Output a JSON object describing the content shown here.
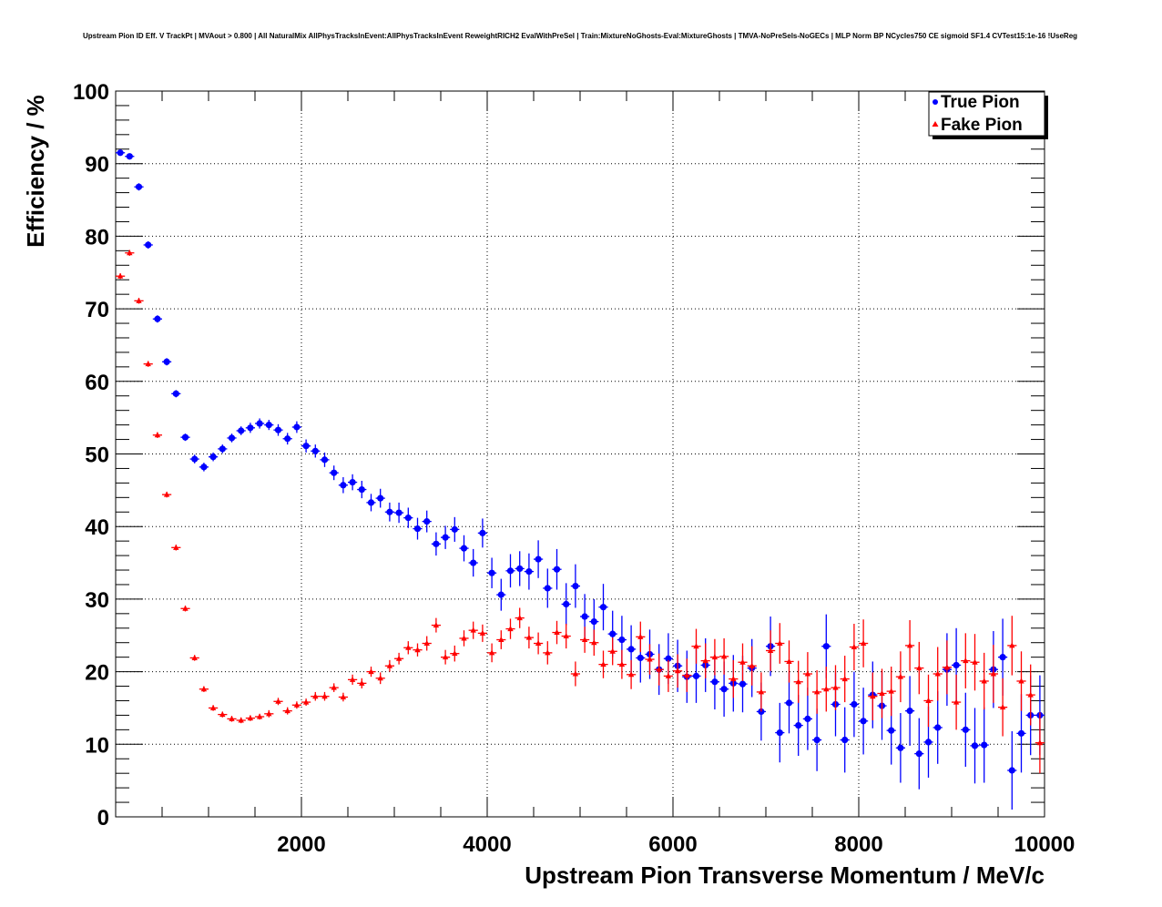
{
  "chart_data": {
    "type": "scatter",
    "title": "Upstream Pion ID Eff. V TrackPt | MVAout > 0.800 | All NaturalMix AllPhysTracksInEvent:AllPhysTracksInEvent ReweightRICH2 EvalWithPreSel | Train:MixtureNoGhosts-Eval:MixtureGhosts | TMVA-NoPreSels-NoGECs | MLP Norm BP NCycles750 CE sigmoid SF1.4 CVTest15:1e-16 !UseReg",
    "xlabel": "Upstream Pion Transverse Momentum / MeV/c",
    "ylabel": "Efficiency / %",
    "xlim": [
      0,
      10000
    ],
    "ylim": [
      0,
      100
    ],
    "x_ticks": [
      2000,
      4000,
      6000,
      8000,
      10000
    ],
    "y_ticks": [
      0,
      10,
      20,
      30,
      40,
      50,
      60,
      70,
      80,
      90,
      100
    ],
    "grid": true,
    "legend_position": "top-right",
    "series": [
      {
        "name": "True Pion",
        "color": "#0000ff",
        "marker": "circle",
        "x": [
          50,
          150,
          250,
          350,
          450,
          550,
          650,
          750,
          850,
          950,
          1050,
          1150,
          1250,
          1350,
          1450,
          1550,
          1650,
          1750,
          1850,
          1950,
          2050,
          2150,
          2250,
          2350,
          2450,
          2550,
          2650,
          2750,
          2850,
          2950,
          3050,
          3150,
          3250,
          3350,
          3450,
          3550,
          3650,
          3750,
          3850,
          3950,
          4050,
          4150,
          4250,
          4350,
          4450,
          4550,
          4650,
          4750,
          4850,
          4950,
          5050,
          5150,
          5250,
          5350,
          5450,
          5550,
          5650,
          5750,
          5850,
          5950,
          6050,
          6150,
          6250,
          6350,
          6450,
          6550,
          6650,
          6750,
          6850,
          6950,
          7050,
          7150,
          7250,
          7350,
          7450,
          7550,
          7650,
          7750,
          7850,
          7950,
          8050,
          8150,
          8250,
          8350,
          8450,
          8550,
          8650,
          8750,
          8850,
          8950,
          9050,
          9150,
          9250,
          9350,
          9450,
          9550,
          9650,
          9750,
          9850,
          9950
        ],
        "y": [
          91.5,
          91.0,
          86.8,
          78.8,
          68.6,
          62.7,
          58.3,
          52.3,
          49.3,
          48.2,
          49.6,
          50.7,
          52.2,
          53.2,
          53.6,
          54.2,
          54.0,
          53.3,
          52.1,
          53.7,
          51.1,
          50.4,
          49.2,
          47.4,
          45.7,
          46.1,
          45.1,
          43.3,
          43.9,
          42.0,
          41.9,
          41.2,
          39.7,
          40.7,
          37.6,
          38.5,
          39.6,
          37.0,
          35.0,
          39.1,
          33.6,
          30.6,
          33.9,
          34.2,
          33.8,
          35.5,
          31.5,
          34.1,
          29.3,
          31.8,
          27.6,
          26.9,
          28.9,
          25.2,
          24.4,
          23.1,
          21.9,
          22.4,
          20.3,
          21.8,
          20.8,
          19.3,
          19.4,
          20.9,
          18.6,
          17.6,
          18.4,
          18.3,
          20.5,
          14.5,
          23.5,
          11.6,
          15.7,
          12.6,
          13.5,
          10.6,
          23.5,
          15.5,
          10.6,
          15.5,
          13.2,
          16.8,
          15.3,
          11.9,
          9.5,
          14.6,
          8.7,
          10.3,
          12.3,
          20.3,
          20.9,
          12.0,
          9.8,
          9.9,
          20.3,
          22.0,
          6.4,
          11.5,
          14.0,
          14.0
        ],
        "err": [
          0.4,
          0.4,
          0.5,
          0.5,
          0.5,
          0.5,
          0.5,
          0.5,
          0.6,
          0.6,
          0.6,
          0.6,
          0.6,
          0.6,
          0.7,
          0.7,
          0.7,
          0.8,
          0.8,
          0.8,
          0.9,
          0.9,
          1.0,
          1.0,
          1.1,
          1.1,
          1.2,
          1.2,
          1.3,
          1.3,
          1.4,
          1.4,
          1.5,
          1.5,
          1.6,
          1.6,
          1.7,
          1.8,
          1.9,
          2.0,
          2.1,
          2.2,
          2.3,
          2.4,
          2.5,
          2.6,
          2.7,
          2.8,
          2.9,
          3.0,
          3.1,
          3.1,
          3.2,
          3.2,
          3.3,
          3.3,
          3.4,
          3.4,
          3.5,
          3.5,
          3.6,
          3.6,
          3.7,
          3.7,
          3.8,
          3.8,
          3.9,
          3.9,
          4.0,
          4.0,
          4.1,
          4.1,
          4.2,
          4.2,
          4.3,
          4.3,
          4.4,
          4.4,
          4.5,
          4.5,
          4.6,
          4.6,
          4.7,
          4.7,
          4.8,
          4.8,
          4.9,
          4.9,
          5.0,
          5.0,
          5.1,
          5.1,
          5.2,
          5.2,
          5.3,
          5.3,
          5.4,
          5.4,
          5.5,
          5.5
        ]
      },
      {
        "name": "Fake Pion",
        "color": "#ff0000",
        "marker": "triangle",
        "x": [
          50,
          150,
          250,
          350,
          450,
          550,
          650,
          750,
          850,
          950,
          1050,
          1150,
          1250,
          1350,
          1450,
          1550,
          1650,
          1750,
          1850,
          1950,
          2050,
          2150,
          2250,
          2350,
          2450,
          2550,
          2650,
          2750,
          2850,
          2950,
          3050,
          3150,
          3250,
          3350,
          3450,
          3550,
          3650,
          3750,
          3850,
          3950,
          4050,
          4150,
          4250,
          4350,
          4450,
          4550,
          4650,
          4750,
          4850,
          4950,
          5050,
          5150,
          5250,
          5350,
          5450,
          5550,
          5650,
          5750,
          5850,
          5950,
          6050,
          6150,
          6250,
          6350,
          6450,
          6550,
          6650,
          6750,
          6850,
          6950,
          7050,
          7150,
          7250,
          7350,
          7450,
          7550,
          7650,
          7750,
          7850,
          7950,
          8050,
          8150,
          8250,
          8350,
          8450,
          8550,
          8650,
          8750,
          8850,
          8950,
          9050,
          9150,
          9250,
          9350,
          9450,
          9550,
          9650,
          9750,
          9850,
          9950
        ],
        "y": [
          74.5,
          77.7,
          71.1,
          62.4,
          52.6,
          44.4,
          37.1,
          28.7,
          21.9,
          17.6,
          15.0,
          14.1,
          13.5,
          13.3,
          13.6,
          13.8,
          14.2,
          15.9,
          14.6,
          15.4,
          15.8,
          16.6,
          16.6,
          17.8,
          16.5,
          18.9,
          18.4,
          20.0,
          19.1,
          20.8,
          21.8,
          23.3,
          23.0,
          23.9,
          26.4,
          22.0,
          22.5,
          24.6,
          25.7,
          25.3,
          22.6,
          24.4,
          25.9,
          27.4,
          24.7,
          23.9,
          22.6,
          25.4,
          24.9,
          19.7,
          24.4,
          24.0,
          21.0,
          22.8,
          21.0,
          19.6,
          24.8,
          21.7,
          20.3,
          19.4,
          20.1,
          19.5,
          23.5,
          21.5,
          22.0,
          22.1,
          19.0,
          21.3,
          20.8,
          17.2,
          22.9,
          23.9,
          21.4,
          18.6,
          19.7,
          17.2,
          17.6,
          17.8,
          19.0,
          23.4,
          23.9,
          16.6,
          17.0,
          17.3,
          19.3,
          23.6,
          20.5,
          16.0,
          19.7,
          20.6,
          15.8,
          21.5,
          21.3,
          18.7,
          19.7,
          15.1,
          23.6,
          18.7,
          16.8,
          10.2
        ],
        "err": [
          0.4,
          0.4,
          0.4,
          0.4,
          0.4,
          0.4,
          0.4,
          0.4,
          0.4,
          0.4,
          0.4,
          0.4,
          0.4,
          0.4,
          0.4,
          0.4,
          0.5,
          0.5,
          0.5,
          0.5,
          0.5,
          0.6,
          0.6,
          0.6,
          0.6,
          0.7,
          0.7,
          0.7,
          0.8,
          0.8,
          0.8,
          0.9,
          0.9,
          1.0,
          1.0,
          1.0,
          1.1,
          1.1,
          1.2,
          1.2,
          1.3,
          1.3,
          1.4,
          1.4,
          1.5,
          1.5,
          1.6,
          1.6,
          1.7,
          1.7,
          1.8,
          1.8,
          1.9,
          1.9,
          2.0,
          2.0,
          2.1,
          2.1,
          2.2,
          2.2,
          2.3,
          2.3,
          2.4,
          2.4,
          2.5,
          2.5,
          2.6,
          2.6,
          2.7,
          2.7,
          2.8,
          2.8,
          2.9,
          2.9,
          3.0,
          3.0,
          3.1,
          3.1,
          3.2,
          3.2,
          3.3,
          3.3,
          3.4,
          3.4,
          3.5,
          3.5,
          3.6,
          3.6,
          3.7,
          3.7,
          3.8,
          3.8,
          3.9,
          3.9,
          4.0,
          4.0,
          4.1,
          4.1,
          4.2,
          4.2
        ]
      }
    ]
  }
}
